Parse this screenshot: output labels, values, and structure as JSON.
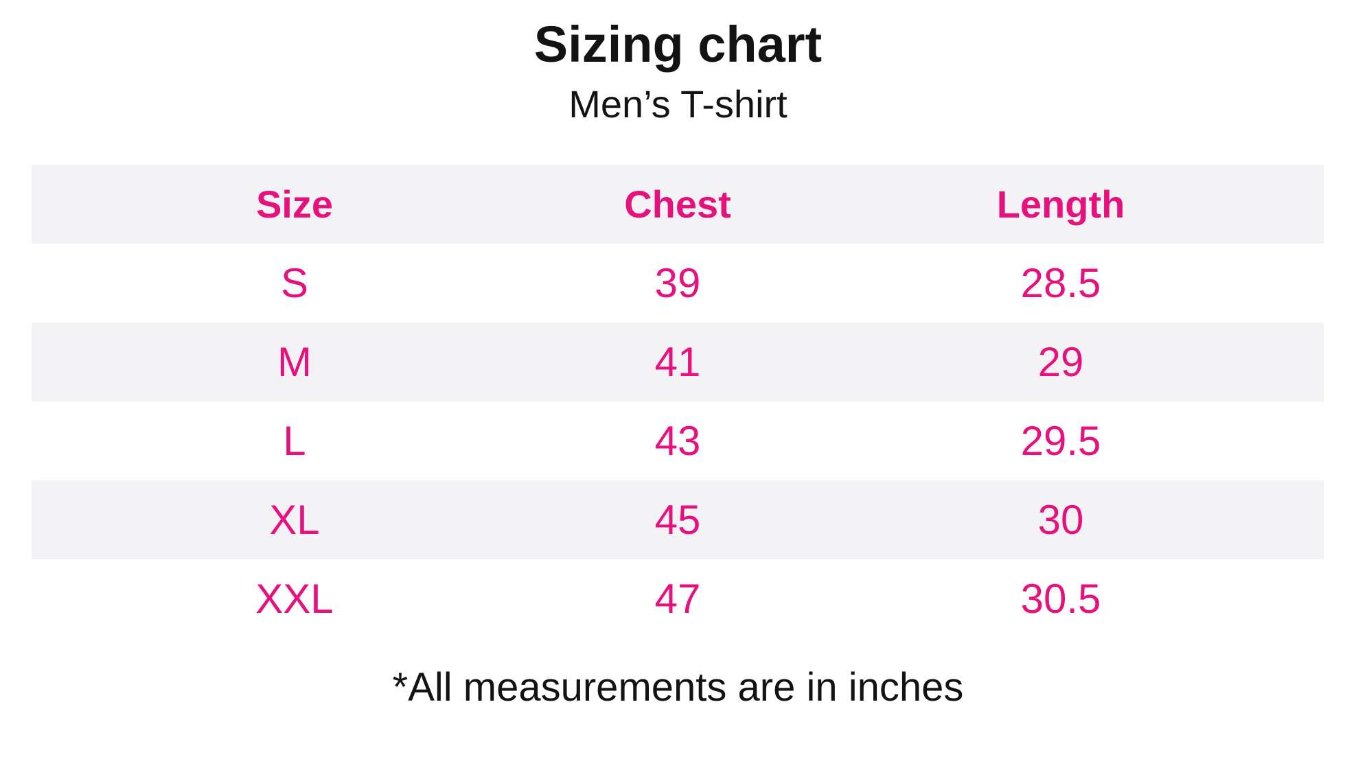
{
  "chart_data": {
    "type": "table",
    "title": "Sizing chart",
    "subtitle": "Men’s T-shirt",
    "columns": [
      "Size",
      "Chest",
      "Length"
    ],
    "rows": [
      [
        "S",
        "39",
        "28.5"
      ],
      [
        "M",
        "41",
        "29"
      ],
      [
        "L",
        "43",
        "29.5"
      ],
      [
        "XL",
        "45",
        "30"
      ],
      [
        "XXL",
        "47",
        "30.5"
      ]
    ],
    "footnote": "*All measurements are in inches",
    "units": "inches",
    "layout": {
      "header_row_background": "#f3f3f5",
      "row_stripe_background": "#f3f3f5",
      "grid": "off",
      "alternating_rows": true
    }
  },
  "colors": {
    "accent_pink": "#e7117e",
    "stripe_gray": "#f3f3f5",
    "text_black": "#131313",
    "background": "#ffffff"
  }
}
